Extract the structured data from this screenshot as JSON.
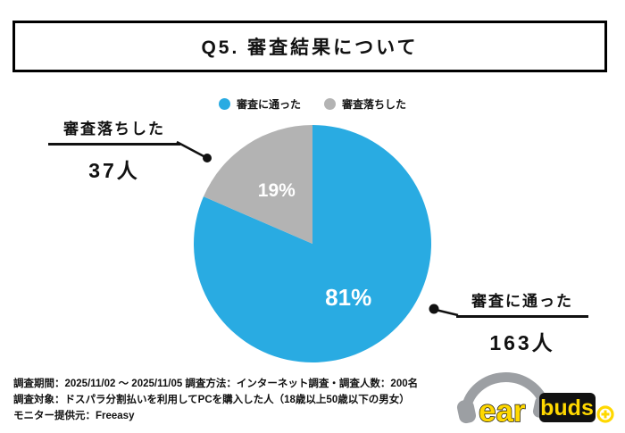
{
  "title": "Q5. 審査結果について",
  "legend": [
    {
      "label": "審査に通った",
      "color": "#29ABE2"
    },
    {
      "label": "審査落ちした",
      "color": "#B3B3B3"
    }
  ],
  "chart_data": {
    "type": "pie",
    "title": "Q5. 審査結果について",
    "slices": [
      {
        "label": "審査に通った",
        "value": 163,
        "percent": 81,
        "color": "#29ABE2"
      },
      {
        "label": "審査落ちした",
        "value": 37,
        "percent": 19,
        "color": "#B3B3B3"
      }
    ],
    "start_angle": "top",
    "direction": "clockwise",
    "legend_position": "top"
  },
  "annotations": {
    "left": {
      "label": "審査落ちした",
      "value": "37人"
    },
    "right": {
      "label": "審査に通った",
      "value": "163人"
    }
  },
  "footer": {
    "line1": "調査期間：2025/11/02 ～ 2025/11/05  調査方法：インターネット調査・調査人数：200名",
    "line2": "調査対象：ドスパラ分割払いを利用してPCを購入した人（18歳以上50歳以下の男女）",
    "line3": "モニター提供元：Freeasy"
  },
  "logo": {
    "ear": "ear",
    "buds": "buds"
  }
}
